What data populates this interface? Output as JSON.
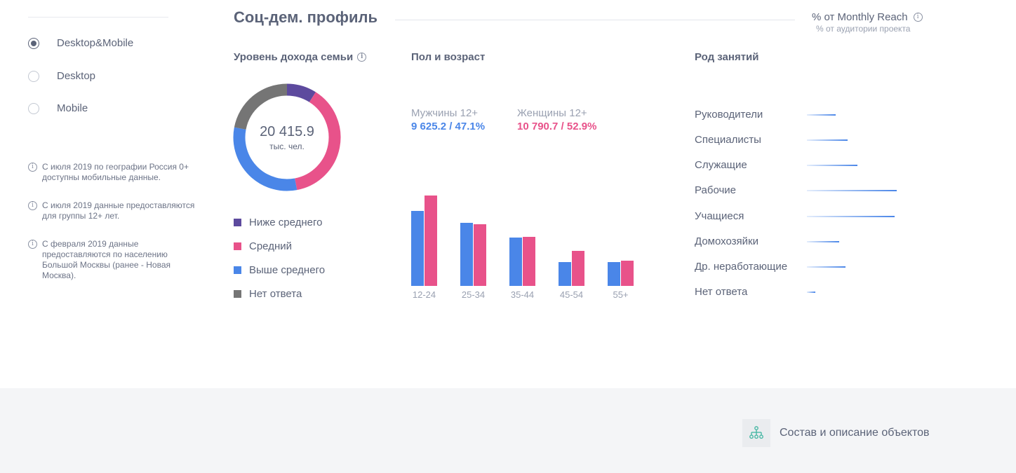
{
  "sidebar": {
    "options": [
      {
        "label": "Desktop&Mobile",
        "checked": true
      },
      {
        "label": "Desktop",
        "checked": false
      },
      {
        "label": "Mobile",
        "checked": false
      }
    ],
    "notes": [
      "С июля 2019 по географии Россия 0+ доступны мобильные данные.",
      "С июля 2019 данные предоставляются для группы 12+ лет.",
      "С февраля 2019 данные предоставляются по населению Большой Москвы (ранее - Новая Москва)."
    ]
  },
  "header": {
    "title": "Соц-дем. профиль",
    "reach_label": "% от Monthly Reach",
    "reach_sub": "% от аудитории проекта"
  },
  "income": {
    "title": "Уровень дохода семьи",
    "total": "20 415.9",
    "unit": "тыс. чел.",
    "legend": [
      {
        "label": "Ниже среднего",
        "color": "#5d4a9e"
      },
      {
        "label": "Средний",
        "color": "#e8528a"
      },
      {
        "label": "Выше среднего",
        "color": "#4a86e8"
      },
      {
        "label": "Нет ответа",
        "color": "#757575"
      }
    ]
  },
  "gender_age": {
    "title": "Пол и возраст",
    "male_label": "Мужчины 12+",
    "male_value": "9 625.2 / 47.1%",
    "male_color": "#4a86e8",
    "female_label": "Женщины 12+",
    "female_value": "10 790.7 / 52.9%",
    "female_color": "#e8528a"
  },
  "occupation": {
    "title": "Род занятий",
    "items": [
      {
        "label": "Руководители",
        "value": 0.32
      },
      {
        "label": "Специалисты",
        "value": 0.45
      },
      {
        "label": "Служащие",
        "value": 0.56
      },
      {
        "label": "Рабочие",
        "value": 1.0
      },
      {
        "label": "Учащиеся",
        "value": 0.98
      },
      {
        "label": "Домохозяйки",
        "value": 0.36
      },
      {
        "label": "Др. неработающие",
        "value": 0.43
      },
      {
        "label": "Нет ответа",
        "value": 0.09
      }
    ],
    "bar_color": "#4a86e8"
  },
  "footer": {
    "link_label": "Состав и описание объектов",
    "icon": "hierarchy-icon",
    "icon_color": "#3fb5a0"
  },
  "chart_data": [
    {
      "type": "pie",
      "categories": [
        "Ниже среднего",
        "Средний",
        "Выше среднего",
        "Нет ответа"
      ],
      "values": [
        9,
        38,
        31,
        22
      ],
      "center_label": "20 415.9",
      "center_sublabel": "тыс. чел."
    },
    {
      "type": "bar",
      "categories": [
        "12-24",
        "25-34",
        "35-44",
        "45-54",
        "55+"
      ],
      "series": [
        {
          "name": "Мужчины 12+",
          "values": [
            107,
            90,
            69,
            34,
            34
          ]
        },
        {
          "name": "Женщины 12+",
          "values": [
            129,
            88,
            70,
            50,
            36
          ]
        }
      ],
      "ylim": [
        0,
        130
      ]
    }
  ]
}
